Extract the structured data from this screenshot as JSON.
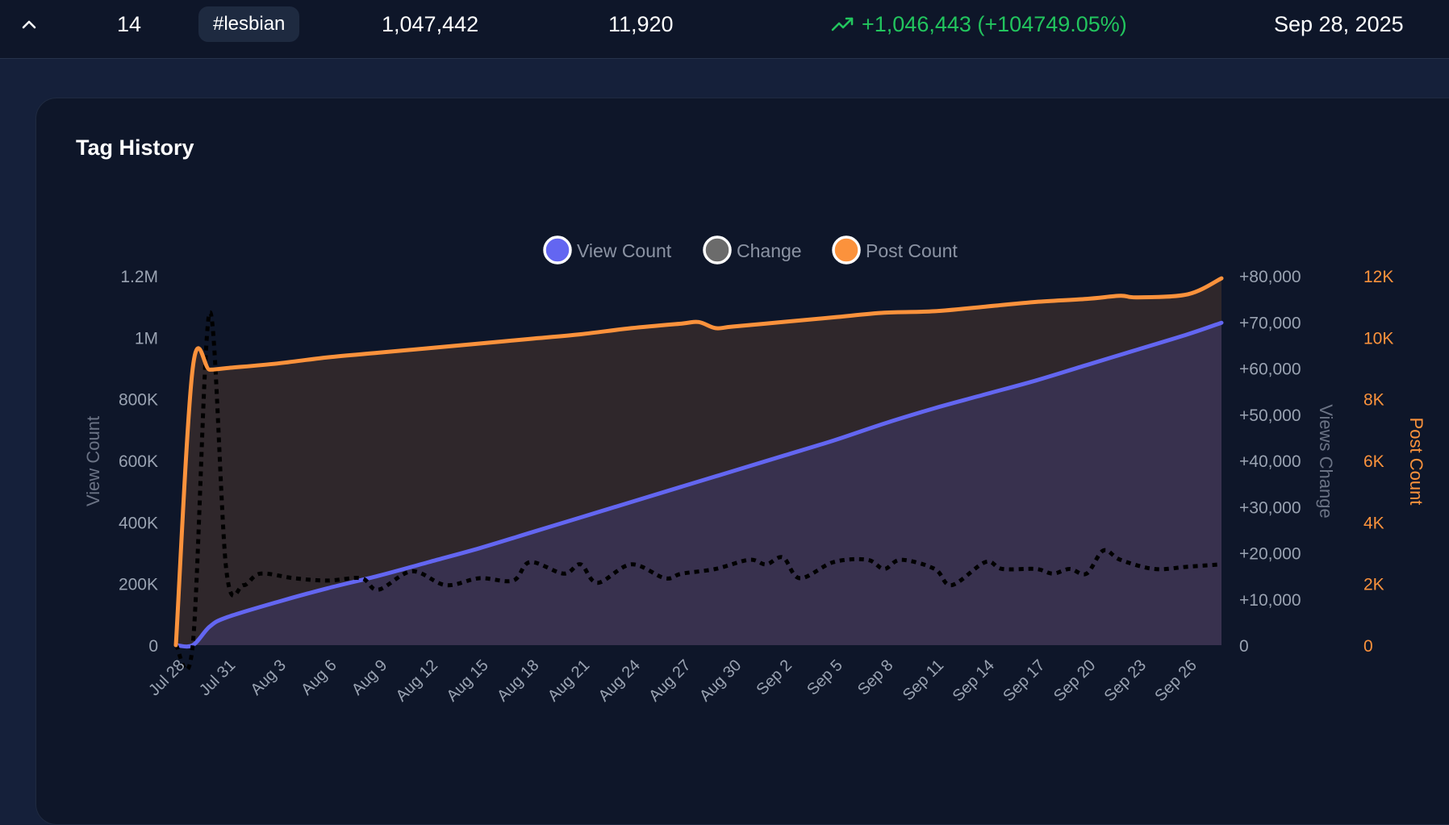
{
  "row": {
    "rank": "14",
    "tag": "#lesbian",
    "views": "1,047,442",
    "posts": "11,920",
    "change": "+1,046,443 (+104749.05%)",
    "date": "Sep 28, 2025",
    "change_color": "#22c55e"
  },
  "card": {
    "title": "Tag History"
  },
  "chart_data": {
    "type": "line",
    "title": "",
    "legend": {
      "placement": "top-center",
      "entries": [
        {
          "label": "View Count",
          "color": "#6366f1"
        },
        {
          "label": "Change",
          "color": "#6b6b6b"
        },
        {
          "label": "Post Count",
          "color": "#fb923c"
        }
      ]
    },
    "x_tick_labels": [
      "Jul 28",
      "Jul 31",
      "Aug 3",
      "Aug 6",
      "Aug 9",
      "Aug 12",
      "Aug 15",
      "Aug 18",
      "Aug 21",
      "Aug 24",
      "Aug 27",
      "Aug 30",
      "Sep 2",
      "Sep 5",
      "Sep 8",
      "Sep 11",
      "Sep 14",
      "Sep 17",
      "Sep 20",
      "Sep 23",
      "Sep 26"
    ],
    "axes": {
      "left": {
        "label": "View Count",
        "ylim": [
          0,
          1200000
        ],
        "ticks": [
          "0",
          "200K",
          "400K",
          "600K",
          "800K",
          "1M",
          "1.2M"
        ]
      },
      "right1": {
        "label": "Views Change",
        "ylim": [
          0,
          80000
        ],
        "ticks": [
          "0",
          "+10,000",
          "+20,000",
          "+30,000",
          "+40,000",
          "+50,000",
          "+60,000",
          "+70,000",
          "+80,000"
        ]
      },
      "right2": {
        "label": "Post Count",
        "ylim": [
          0,
          12000
        ],
        "ticks": [
          "0",
          "2K",
          "4K",
          "6K",
          "8K",
          "10K",
          "12K"
        ],
        "color": "#fb923c"
      }
    },
    "grid": false,
    "series": [
      {
        "name": "View Count",
        "axis": "left",
        "color": "#6366f1",
        "style": "solid",
        "fill": true,
        "x": [
          "2025-07-28",
          "2025-07-29",
          "2025-07-30",
          "2025-07-31",
          "2025-08-03",
          "2025-08-06",
          "2025-08-09",
          "2025-08-12",
          "2025-08-15",
          "2025-08-18",
          "2025-08-21",
          "2025-08-24",
          "2025-08-27",
          "2025-08-30",
          "2025-09-02",
          "2025-09-05",
          "2025-09-08",
          "2025-09-11",
          "2025-09-14",
          "2025-09-17",
          "2025-09-20",
          "2025-09-23",
          "2025-09-26",
          "2025-09-28"
        ],
        "values": [
          0,
          0,
          60000,
          90000,
          140000,
          185000,
          225000,
          270000,
          315000,
          365000,
          415000,
          465000,
          515000,
          565000,
          615000,
          665000,
          720000,
          770000,
          815000,
          860000,
          910000,
          960000,
          1010000,
          1047442
        ]
      },
      {
        "name": "Change",
        "axis": "right1",
        "color": "#000000",
        "style": "dotted",
        "fill": false,
        "x": [
          "2025-07-28",
          "2025-07-29",
          "2025-07-30",
          "2025-07-31",
          "2025-08-01",
          "2025-08-02",
          "2025-08-04",
          "2025-08-06",
          "2025-08-08",
          "2025-08-09",
          "2025-08-11",
          "2025-08-13",
          "2025-08-15",
          "2025-08-17",
          "2025-08-18",
          "2025-08-20",
          "2025-08-21",
          "2025-08-22",
          "2025-08-24",
          "2025-08-26",
          "2025-08-27",
          "2025-08-29",
          "2025-08-31",
          "2025-09-01",
          "2025-09-02",
          "2025-09-03",
          "2025-09-05",
          "2025-09-07",
          "2025-09-08",
          "2025-09-09",
          "2025-09-11",
          "2025-09-12",
          "2025-09-14",
          "2025-09-15",
          "2025-09-17",
          "2025-09-18",
          "2025-09-19",
          "2025-09-20",
          "2025-09-21",
          "2025-09-22",
          "2025-09-24",
          "2025-09-26",
          "2025-09-28"
        ],
        "values": [
          0,
          0,
          72000,
          16000,
          13000,
          15500,
          14500,
          14000,
          14500,
          12000,
          16000,
          13000,
          14500,
          14000,
          18000,
          15500,
          17500,
          13500,
          17500,
          14500,
          15500,
          16500,
          18500,
          17500,
          19000,
          14500,
          18000,
          18500,
          16500,
          18500,
          16500,
          13000,
          18000,
          16500,
          16500,
          15500,
          16500,
          15500,
          20500,
          18500,
          16500,
          17000,
          17500
        ]
      },
      {
        "name": "Post Count",
        "axis": "right2",
        "color": "#fb923c",
        "style": "solid",
        "fill": true,
        "x": [
          "2025-07-28",
          "2025-07-29",
          "2025-07-30",
          "2025-07-31",
          "2025-08-03",
          "2025-08-06",
          "2025-08-09",
          "2025-08-12",
          "2025-08-15",
          "2025-08-18",
          "2025-08-21",
          "2025-08-24",
          "2025-08-27",
          "2025-08-28",
          "2025-08-29",
          "2025-08-30",
          "2025-09-02",
          "2025-09-05",
          "2025-09-08",
          "2025-09-11",
          "2025-09-14",
          "2025-09-17",
          "2025-09-20",
          "2025-09-22",
          "2025-09-23",
          "2025-09-26",
          "2025-09-28"
        ],
        "values": [
          0,
          9000,
          8950,
          9000,
          9150,
          9350,
          9500,
          9650,
          9800,
          9950,
          10100,
          10300,
          10450,
          10500,
          10300,
          10350,
          10500,
          10650,
          10800,
          10850,
          11000,
          11150,
          11250,
          11350,
          11300,
          11400,
          11920
        ]
      }
    ]
  }
}
